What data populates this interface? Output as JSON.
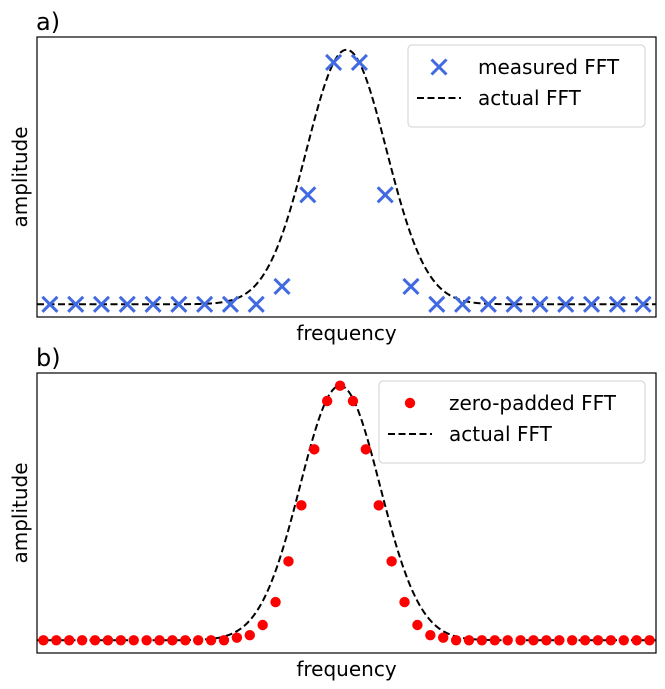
{
  "chart_data": [
    {
      "type": "scatter",
      "panel_label": "a)",
      "xlabel": "frequency",
      "ylabel": "amplitude",
      "xlim": [
        -0.5,
        23.5
      ],
      "ylim": [
        -0.05,
        1.05
      ],
      "x_ticks": false,
      "y_ticks": false,
      "grid": false,
      "legend_position": "upper right",
      "series": [
        {
          "name": "measured FFT",
          "kind": "markers",
          "marker": "x",
          "color": "#4169e1",
          "x": [
            0,
            1,
            2,
            3,
            4,
            5,
            6,
            7,
            8,
            9,
            10,
            11,
            12,
            13,
            14,
            15,
            16,
            17,
            18,
            19,
            20,
            21,
            22,
            23
          ],
          "y": [
            0,
            0,
            0,
            0,
            0,
            0,
            0,
            0,
            0,
            0.07,
            0.43,
            0.95,
            0.95,
            0.43,
            0.07,
            0,
            0,
            0,
            0,
            0,
            0,
            0,
            0,
            0
          ]
        },
        {
          "name": "actual FFT",
          "kind": "line",
          "linestyle": "dashed",
          "color": "#000000",
          "curve": "gaussian",
          "center": 11.5,
          "sigma": 1.55,
          "peak": 1.0,
          "baseline": 0
        }
      ]
    },
    {
      "type": "scatter",
      "panel_label": "b)",
      "xlabel": "frequency",
      "ylabel": "amplitude",
      "xlim": [
        -0.25,
        23.75
      ],
      "ylim": [
        -0.05,
        1.05
      ],
      "x_ticks": false,
      "y_ticks": false,
      "grid": false,
      "legend_position": "upper right",
      "series": [
        {
          "name": "zero-padded FFT",
          "kind": "markers",
          "marker": "o",
          "color": "#ff0000",
          "x": [
            0,
            0.5,
            1,
            1.5,
            2,
            2.5,
            3,
            3.5,
            4,
            4.5,
            5,
            5.5,
            6,
            6.5,
            7,
            7.5,
            8,
            8.5,
            9,
            9.5,
            10,
            10.5,
            11,
            11.5,
            12,
            12.5,
            13,
            13.5,
            14,
            14.5,
            15,
            15.5,
            16,
            16.5,
            17,
            17.5,
            18,
            18.5,
            19,
            19.5,
            20,
            20.5,
            21,
            21.5,
            22,
            22.5,
            23,
            23.5
          ],
          "y": [
            0,
            0,
            0,
            0,
            0,
            0,
            0,
            0,
            0,
            0,
            0,
            0,
            0,
            0,
            0,
            0.01,
            0.02,
            0.06,
            0.15,
            0.31,
            0.53,
            0.75,
            0.94,
            1.0,
            0.94,
            0.75,
            0.53,
            0.31,
            0.15,
            0.06,
            0.02,
            0.01,
            0,
            0,
            0,
            0,
            0,
            0,
            0,
            0,
            0,
            0,
            0,
            0,
            0,
            0,
            0,
            0
          ]
        },
        {
          "name": "actual FFT",
          "kind": "line",
          "linestyle": "dashed",
          "color": "#000000",
          "curve": "gaussian",
          "center": 11.5,
          "sigma": 1.55,
          "peak": 1.0,
          "baseline": 0
        }
      ]
    }
  ]
}
